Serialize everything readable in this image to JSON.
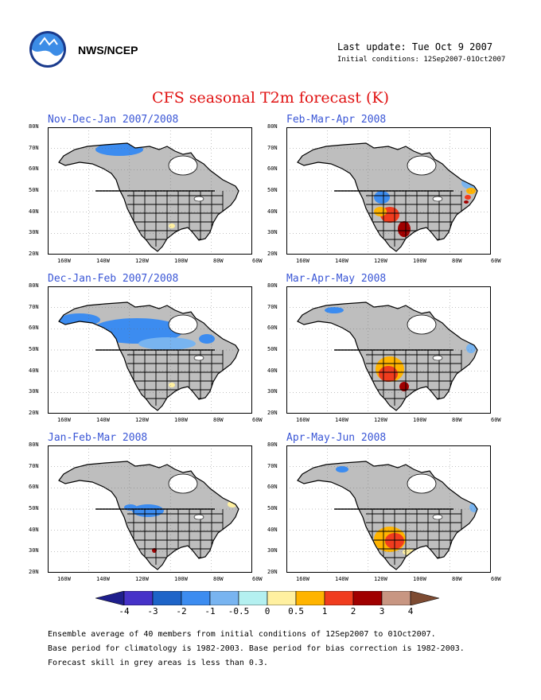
{
  "header": {
    "agency": "NWS/NCEP",
    "last_update": "Last update: Tue Oct  9 2007",
    "initial_conditions": "Initial conditions: 12Sep2007-01Oct2007"
  },
  "title": "CFS seasonal T2m forecast (K)",
  "axes": {
    "lat_labels": [
      "80N",
      "70N",
      "60N",
      "50N",
      "40N",
      "30N",
      "20N"
    ],
    "lon_labels": [
      "160W",
      "140W",
      "120W",
      "100W",
      "80W",
      "60W"
    ]
  },
  "panels": [
    {
      "title": "Nov-Dec-Jan 2007/2008"
    },
    {
      "title": "Feb-Mar-Apr 2008"
    },
    {
      "title": "Dec-Jan-Feb 2007/2008"
    },
    {
      "title": "Mar-Apr-May 2008"
    },
    {
      "title": "Jan-Feb-Mar 2008"
    },
    {
      "title": "Apr-May-Jun 2008"
    }
  ],
  "colorbar": {
    "labels": [
      "-4",
      "-3",
      "-2",
      "-1",
      "-0.5",
      "0",
      "0.5",
      "1",
      "2",
      "3",
      "4"
    ],
    "colors": [
      "#1e1e8c",
      "#4632c8",
      "#1e64c8",
      "#3c8cf0",
      "#78b4f0",
      "#b4f0f0",
      "#fff0a0",
      "#ffb400",
      "#f03c1e",
      "#a00000",
      "#c89682",
      "#7d4b32"
    ]
  },
  "colors": {
    "land": "#bebebe",
    "title": "#e01010",
    "panel_title": "#3a56d6"
  },
  "footnotes": [
    "Ensemble average of 40 members from initial conditions of 12Sep2007 to 01Oct2007.",
    "Base period for climatology is 1982-2003. Base period for bias correction is 1982-2003.",
    "Forecast skill in grey areas is less than 0.3."
  ]
}
